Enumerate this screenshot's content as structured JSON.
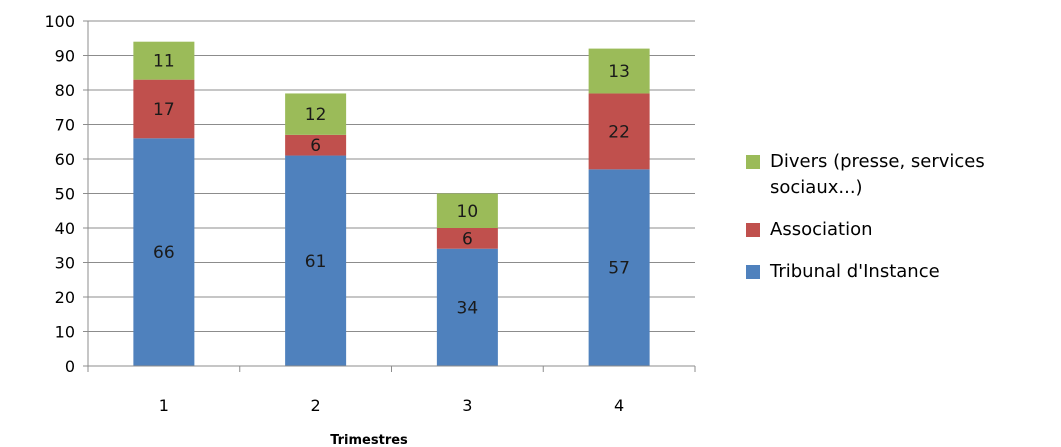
{
  "chart_data": {
    "type": "bar",
    "stacked": true,
    "categories": [
      "1",
      "2",
      "3",
      "4"
    ],
    "series": [
      {
        "name": "Tribunal d'Instance",
        "values": [
          66,
          61,
          34,
          57
        ],
        "color": "#4F81BD"
      },
      {
        "name": "Association",
        "values": [
          17,
          6,
          6,
          22
        ],
        "color": "#C0504D"
      },
      {
        "name": "Divers (presse, services sociaux...)",
        "values": [
          11,
          12,
          10,
          13
        ],
        "color": "#9BBB59"
      }
    ],
    "title": "",
    "xlabel": "Trimestres",
    "ylabel": "",
    "ylim": [
      0,
      100
    ],
    "yticks": [
      0,
      10,
      20,
      30,
      40,
      50,
      60,
      70,
      80,
      90,
      100
    ],
    "grid": true,
    "legend": "right"
  },
  "legend": {
    "items": [
      {
        "label": "Divers (presse, services sociaux...)",
        "color": "#9BBB59"
      },
      {
        "label": "Association",
        "color": "#C0504D"
      },
      {
        "label": "Tribunal d'Instance",
        "color": "#4F81BD"
      }
    ]
  }
}
